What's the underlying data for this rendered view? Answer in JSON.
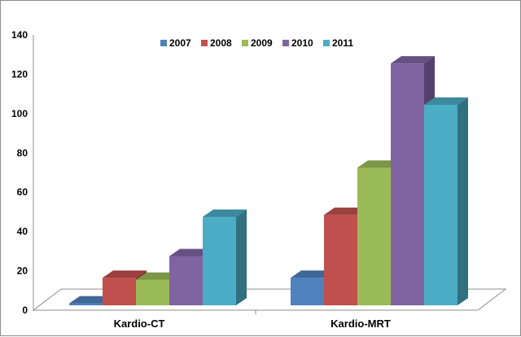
{
  "chart_data": {
    "type": "bar",
    "categories": [
      "Kardio-CT",
      "Kardio-MRT"
    ],
    "series": [
      {
        "name": "2007",
        "values": [
          1,
          14
        ],
        "color": "#4f81bd"
      },
      {
        "name": "2008",
        "values": [
          14,
          46
        ],
        "color": "#c0504d"
      },
      {
        "name": "2009",
        "values": [
          13,
          70
        ],
        "color": "#9bbb59"
      },
      {
        "name": "2010",
        "values": [
          25,
          123
        ],
        "color": "#8064a2"
      },
      {
        "name": "2011",
        "values": [
          45,
          102
        ],
        "color": "#4bacc6"
      }
    ],
    "yticks": [
      "0",
      "20",
      "40",
      "60",
      "80",
      "100",
      "120",
      "140"
    ],
    "ylim": [
      0,
      140
    ],
    "legend_position": "top",
    "grid": false,
    "style": "3d-clustered-column"
  }
}
